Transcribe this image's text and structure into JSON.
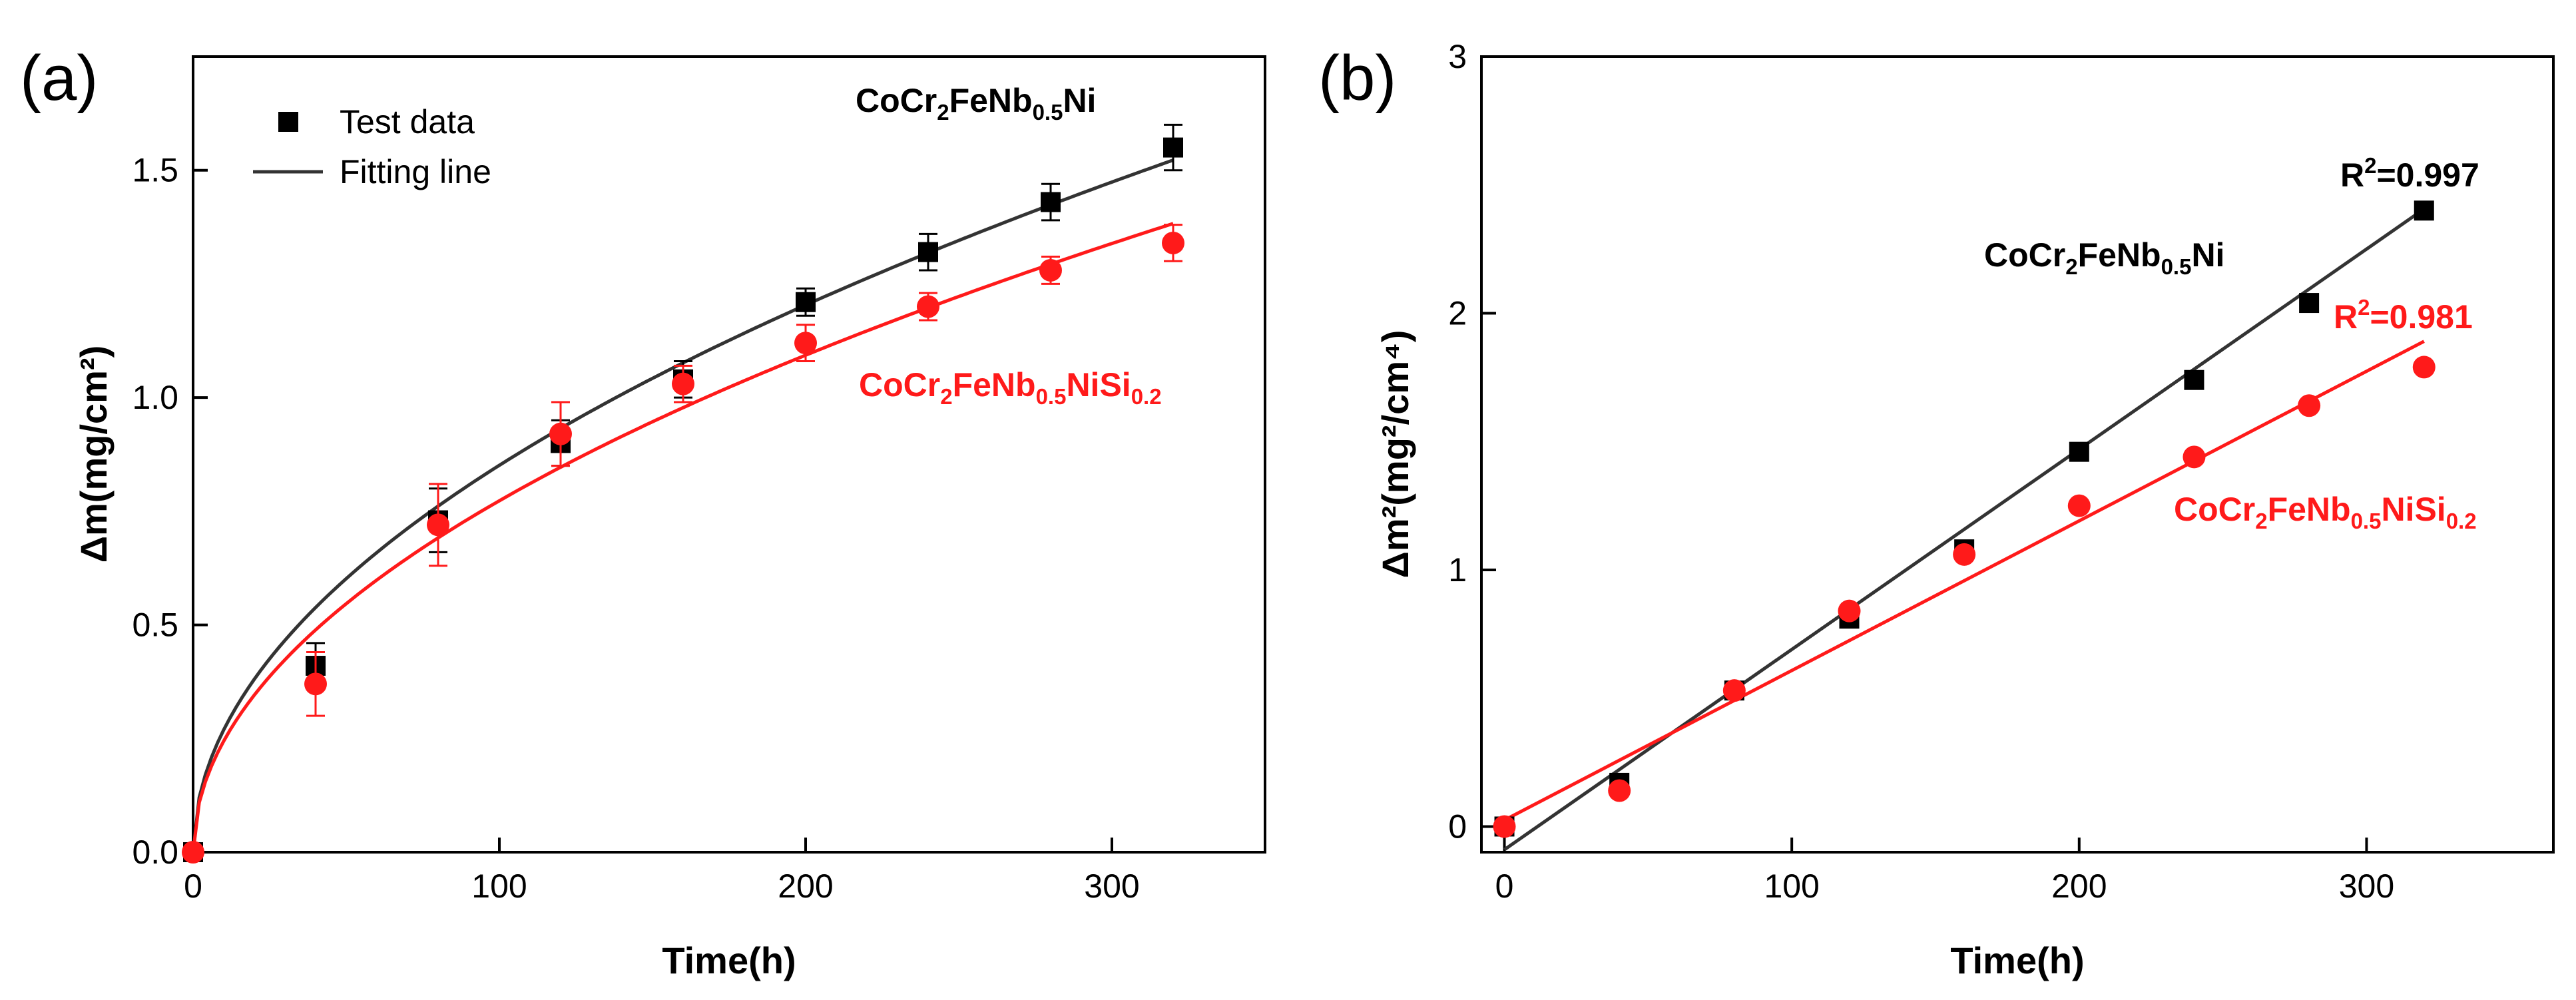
{
  "colors": {
    "black": "#000000",
    "red": "#ff1a1a"
  },
  "chart_data": [
    {
      "panel_label": "(a)",
      "type": "scatter",
      "xlabel": "Time(h)",
      "ylabel": "Δm(mg/cm²)",
      "xlim": [
        0,
        350
      ],
      "ylim": [
        0,
        1.75
      ],
      "x_ticks": [
        "0",
        "100",
        "200",
        "300"
      ],
      "y_ticks": [
        "0.0",
        "0.5",
        "1.0",
        "1.5"
      ],
      "legend": {
        "marker_label": "Test data",
        "line_label": "Fitting line",
        "position": "top-left"
      },
      "series": [
        {
          "name": "CoCr2FeNb0.5Ni",
          "label": {
            "pre": "CoCr",
            "s1": "2",
            "mid": "FeNb",
            "s2": "0.5",
            "post": "Ni",
            "s3": ""
          },
          "color": "#000000",
          "marker": "square",
          "x": [
            0,
            40,
            80,
            120,
            160,
            200,
            240,
            280,
            320
          ],
          "values": [
            0,
            0.41,
            0.73,
            0.9,
            1.04,
            1.21,
            1.32,
            1.43,
            1.55
          ],
          "errors": [
            0,
            0.05,
            0.07,
            0.05,
            0.04,
            0.03,
            0.04,
            0.04,
            0.05
          ],
          "fit": {
            "model": "k*sqrt(t)",
            "k": 0.0851
          }
        },
        {
          "name": "CoCr2FeNb0.5NiSi0.2",
          "label": {
            "pre": "CoCr",
            "s1": "2",
            "mid": "FeNb",
            "s2": "0.5",
            "post": "NiSi",
            "s3": "0.2"
          },
          "color": "#ff1a1a",
          "marker": "circle",
          "x": [
            0,
            40,
            80,
            120,
            160,
            200,
            240,
            280,
            320
          ],
          "values": [
            0,
            0.37,
            0.72,
            0.92,
            1.03,
            1.12,
            1.2,
            1.28,
            1.34
          ],
          "errors": [
            0,
            0.07,
            0.09,
            0.07,
            0.04,
            0.04,
            0.03,
            0.03,
            0.04
          ],
          "fit": {
            "model": "k*sqrt(t)",
            "k": 0.0773
          }
        }
      ]
    },
    {
      "panel_label": "(b)",
      "type": "scatter",
      "xlabel": "Time(h)",
      "ylabel": "Δm²(mg²/cm⁴)",
      "xlim": [
        -8,
        365
      ],
      "ylim": [
        -0.1,
        3.0
      ],
      "x_ticks": [
        "0",
        "100",
        "200",
        "300"
      ],
      "y_ticks": [
        "0",
        "1",
        "2",
        "3"
      ],
      "series": [
        {
          "name": "CoCr2FeNb0.5Ni",
          "label": {
            "pre": "CoCr",
            "s1": "2",
            "mid": "FeNb",
            "s2": "0.5",
            "post": "Ni",
            "s3": ""
          },
          "r2_base": "R",
          "r2_sup": "2",
          "r2_value": "=0.997",
          "color": "#000000",
          "marker": "square",
          "x": [
            0,
            40,
            80,
            120,
            160,
            200,
            240,
            280,
            320
          ],
          "values": [
            0,
            0.17,
            0.53,
            0.81,
            1.08,
            1.46,
            1.74,
            2.04,
            2.4
          ],
          "fit": {
            "slope": 0.0078,
            "intercept": -0.09,
            "x0": 0,
            "x1": 320
          }
        },
        {
          "name": "CoCr2FeNb0.5NiSi0.2",
          "label": {
            "pre": "CoCr",
            "s1": "2",
            "mid": "FeNb",
            "s2": "0.5",
            "post": "NiSi",
            "s3": "0.2"
          },
          "r2_base": "R",
          "r2_sup": "2",
          "r2_value": "=0.981",
          "color": "#ff1a1a",
          "marker": "circle",
          "x": [
            0,
            40,
            80,
            120,
            160,
            200,
            240,
            280,
            320
          ],
          "values": [
            0,
            0.14,
            0.53,
            0.84,
            1.06,
            1.25,
            1.44,
            1.64,
            1.79
          ],
          "fit": {
            "slope": 0.00583,
            "intercept": 0.025,
            "x0": 0,
            "x1": 320
          }
        }
      ]
    }
  ]
}
